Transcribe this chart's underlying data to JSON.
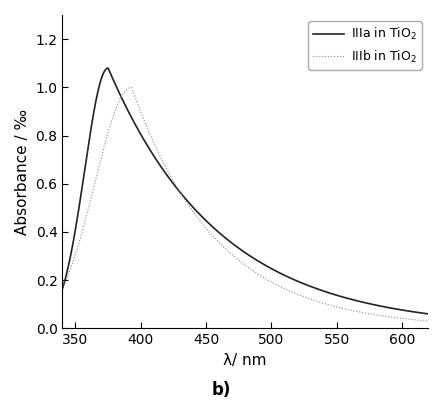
{
  "title": "",
  "xlabel": "λ/ nm",
  "ylabel": "Absorbance / ‰",
  "xlim": [
    340,
    620
  ],
  "ylim": [
    0.0,
    1.3
  ],
  "xticks": [
    350,
    400,
    450,
    500,
    550,
    600
  ],
  "yticks": [
    0.0,
    0.2,
    0.4,
    0.6,
    0.8,
    1.0,
    1.2
  ],
  "label_a": "IIIa in TiO$_2$",
  "label_b": "IIIb in TiO$_2$",
  "footnote": "b)",
  "line_color_a": "#222222",
  "line_color_b": "#888888",
  "background": "#ffffff",
  "legend_box": true
}
